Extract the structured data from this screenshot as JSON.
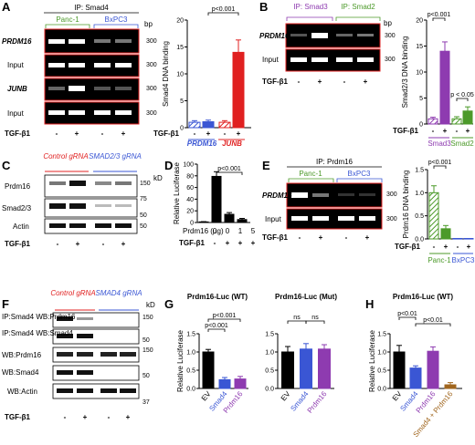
{
  "panels": {
    "A": {
      "letter": "A",
      "ip_title": "IP: Smad4",
      "cell_lines": [
        "Panc-1",
        "BxPC3"
      ],
      "gel_rows": [
        "PRDM16",
        "Input",
        "JUNB",
        "Input"
      ],
      "bp_unit": "bp",
      "bp_marker": "300",
      "treatment_label": "TGF-β1",
      "treatment_signs": [
        "-",
        "+",
        "-",
        "+"
      ],
      "chart_data": {
        "type": "bar",
        "ylabel": "Smad4 DNA binding",
        "ylim": [
          0,
          20
        ],
        "yticks": [
          0,
          5,
          10,
          15,
          20
        ],
        "groups": [
          "PRDM16",
          "JUNB"
        ],
        "treatment_label": "TGF-β1",
        "signs": [
          "-",
          "+",
          "-",
          "+"
        ],
        "bars": [
          {
            "group": "PRDM16",
            "tgf": "-",
            "value": 1.0,
            "err": 0.3,
            "color": "#3a56d4",
            "hatched": true
          },
          {
            "group": "PRDM16",
            "tgf": "+",
            "value": 1.1,
            "err": 0.3,
            "color": "#3a56d4",
            "hatched": false
          },
          {
            "group": "JUNB",
            "tgf": "-",
            "value": 1.0,
            "err": 0.3,
            "color": "#e02020",
            "hatched": true
          },
          {
            "group": "JUNB",
            "tgf": "+",
            "value": 14.0,
            "err": 2.3,
            "color": "#e02020",
            "hatched": false
          }
        ],
        "annotations": [
          {
            "text": "p<0.001",
            "from": 1,
            "to": 3
          }
        ]
      }
    },
    "B": {
      "letter": "B",
      "ip_titles": [
        "IP: Smad3",
        "IP: Smad2"
      ],
      "gel_rows": [
        "PRDM16",
        "Input"
      ],
      "bp_unit": "bp",
      "bp_marker": "300",
      "treatment_label": "TGF-β1",
      "treatment_signs": [
        "-",
        "+",
        "-",
        "+"
      ],
      "chart_data": {
        "type": "bar",
        "ylabel": "Smad2/3 DNA binding",
        "ylim": [
          0,
          20
        ],
        "yticks": [
          0,
          5,
          10,
          15,
          20
        ],
        "groups": [
          "Smad3",
          "Smad2"
        ],
        "treatment_label": "TGF-β1",
        "signs": [
          "-",
          "+",
          "-",
          "+"
        ],
        "bars": [
          {
            "group": "Smad3",
            "tgf": "-",
            "value": 1.0,
            "err": 0.3,
            "color": "#8e3bb0",
            "hatched": true
          },
          {
            "group": "Smad3",
            "tgf": "+",
            "value": 14.0,
            "err": 1.8,
            "color": "#8e3bb0",
            "hatched": false
          },
          {
            "group": "Smad2",
            "tgf": "-",
            "value": 1.0,
            "err": 0.4,
            "color": "#4c9a2a",
            "hatched": true
          },
          {
            "group": "Smad2",
            "tgf": "+",
            "value": 2.5,
            "err": 0.8,
            "color": "#4c9a2a",
            "hatched": false
          }
        ],
        "annotations": [
          {
            "text": "p<0.001",
            "from": 0,
            "to": 1
          },
          {
            "text": "p < 0.05",
            "from": 2,
            "to": 3
          }
        ]
      }
    },
    "C": {
      "letter": "C",
      "conditions": [
        "Control gRNA",
        "SMAD2/3 gRNA"
      ],
      "blot_rows": [
        "Prdm16",
        "Smad2/3",
        "Actin"
      ],
      "kd_unit": "kD",
      "kd_markers": [
        "150",
        "75",
        "50",
        "50"
      ],
      "treatment_label": "TGF-β1",
      "treatment_signs": [
        "-",
        "+",
        "-",
        "+"
      ]
    },
    "D": {
      "letter": "D",
      "chart_data": {
        "type": "bar",
        "ylabel": "Relative Luciferase",
        "ylim": [
          0,
          100
        ],
        "yticks": [
          0,
          20,
          40,
          60,
          80,
          100
        ],
        "xlabel": "Prdm16 (μg)",
        "doses": [
          "0",
          "0",
          "1",
          "5"
        ],
        "treatment_label": "TGF-β1",
        "signs": [
          "-",
          "+",
          "+",
          "+"
        ],
        "bars": [
          {
            "value": 1,
            "err": 0.5
          },
          {
            "value": 79,
            "err": 8
          },
          {
            "value": 14,
            "err": 3
          },
          {
            "value": 5,
            "err": 2
          }
        ],
        "annotations": [
          {
            "text": "p<0.001",
            "from": 1,
            "to": 3
          }
        ]
      }
    },
    "E": {
      "letter": "E",
      "ip_title": "IP: Prdm16",
      "cell_lines": [
        "Panc-1",
        "BxPC3"
      ],
      "gel_rows": [
        "PRDM16",
        "Input"
      ],
      "bp_unit": "bp",
      "bp_marker": "300",
      "treatment_label": "TGF-β1",
      "treatment_signs": [
        "-",
        "+",
        "-",
        "+"
      ],
      "chart_data": {
        "type": "bar",
        "ylabel": "Prdm16 DNA binding",
        "ylim": [
          0,
          1.5
        ],
        "yticks": [
          "0.0",
          "0.5",
          "1.0",
          "1.5"
        ],
        "groups": [
          "Panc-1",
          "BxPC3"
        ],
        "treatment_label": "TGF-β1",
        "signs": [
          "-",
          "+",
          "-",
          "+"
        ],
        "bars": [
          {
            "group": "Panc-1",
            "tgf": "-",
            "value": 1.0,
            "err": 0.15,
            "color": "#4c9a2a",
            "hatched": true
          },
          {
            "group": "Panc-1",
            "tgf": "+",
            "value": 0.22,
            "err": 0.07,
            "color": "#4c9a2a",
            "hatched": false
          },
          {
            "group": "BxPC3",
            "tgf": "-",
            "value": 0.01,
            "err": 0.0,
            "color": "#3a56d4",
            "hatched": true
          },
          {
            "group": "BxPC3",
            "tgf": "+",
            "value": 0.01,
            "err": 0.0,
            "color": "#3a56d4",
            "hatched": false
          }
        ],
        "annotations": [
          {
            "text": "p<0.001",
            "from": 0,
            "to": 1
          }
        ]
      }
    },
    "F": {
      "letter": "F",
      "conditions": [
        "Control gRNA",
        "SMAD4 gRNA"
      ],
      "blot_rows": [
        "IP:Smad4 WB:Prdm16",
        "IP:Smad4 WB:Smad4",
        "WB:Prdm16",
        "WB:Smad4",
        "WB:Actin"
      ],
      "kd_unit": "kD",
      "kd_markers": [
        "150",
        "50",
        "150",
        "50",
        "37"
      ],
      "treatment_label": "TGF-β1",
      "treatment_signs": [
        "-",
        "+",
        "-",
        "+"
      ]
    },
    "G": {
      "letter": "G",
      "charts": [
        {
          "title": "Prdm16-Luc (WT)",
          "chart_data": {
            "type": "bar",
            "ylabel": "Relative Luciferase",
            "ylim": [
              0,
              1.5
            ],
            "yticks": [
              "0.0",
              "0.5",
              "1.0",
              "1.5"
            ],
            "categories": [
              "EV",
              "Smad4",
              "Prdm16"
            ],
            "bars": [
              {
                "value": 1.0,
                "err": 0.07,
                "color": "#000000"
              },
              {
                "value": 0.24,
                "err": 0.06,
                "color": "#3a56d4"
              },
              {
                "value": 0.26,
                "err": 0.07,
                "color": "#8e3bb0"
              }
            ],
            "annotations": [
              {
                "text": "p<0.001",
                "from": 0,
                "to": 1,
                "level": 0
              },
              {
                "text": "p<0.001",
                "from": 0,
                "to": 2,
                "level": 1
              }
            ]
          }
        },
        {
          "title": "Prdm16-Luc (Mut)",
          "chart_data": {
            "type": "bar",
            "ylim": [
              0,
              1.5
            ],
            "yticks": [
              "0.0",
              "0.5",
              "1.0",
              "1.5"
            ],
            "categories": [
              "EV",
              "Smad4",
              "Prdm16"
            ],
            "bars": [
              {
                "value": 1.0,
                "err": 0.15,
                "color": "#000000"
              },
              {
                "value": 1.08,
                "err": 0.15,
                "color": "#3a56d4"
              },
              {
                "value": 1.08,
                "err": 0.12,
                "color": "#8e3bb0"
              }
            ],
            "annotations": [
              {
                "text": "ns",
                "from": 0,
                "to": 1,
                "level": 0
              },
              {
                "text": "ns",
                "from": 1,
                "to": 2,
                "level": 0
              }
            ]
          }
        }
      ]
    },
    "H": {
      "letter": "H",
      "title": "Prdm16-Luc (WT)",
      "chart_data": {
        "type": "bar",
        "ylabel": "Relative Luciferase",
        "ylim": [
          0,
          1.5
        ],
        "yticks": [
          "0.0",
          "0.5",
          "1.0",
          "1.5"
        ],
        "categories": [
          "EV",
          "Smad4",
          "Prdm16",
          "Smad4 + Prdm16"
        ],
        "bars": [
          {
            "value": 1.0,
            "err": 0.18,
            "color": "#000000"
          },
          {
            "value": 0.56,
            "err": 0.06,
            "color": "#3a56d4"
          },
          {
            "value": 1.02,
            "err": 0.12,
            "color": "#8e3bb0"
          },
          {
            "value": 0.1,
            "err": 0.06,
            "color": "#a0661e"
          }
        ],
        "annotations": [
          {
            "text": "p<0.01",
            "from": 0,
            "to": 1,
            "level": 0
          },
          {
            "text": "p<0.01",
            "from": 1,
            "to": 3,
            "level": 0
          }
        ]
      }
    }
  },
  "colors": {
    "gel_border": "#e02020",
    "gel_bg": "#000000",
    "band": "#ffffff",
    "panc1": "#4c9a2a",
    "bxpc3": "#3a56d4",
    "control_gRNA": "#e02020",
    "smad_gRNA": "#3a56d4",
    "smad3": "#8e3bb0",
    "smad2": "#4c9a2a"
  }
}
